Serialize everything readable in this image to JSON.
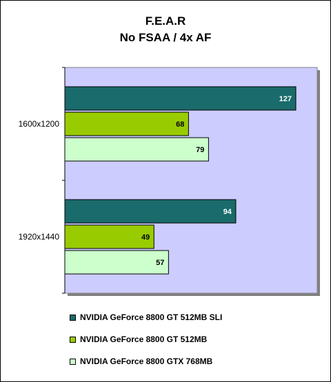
{
  "chart_data": {
    "type": "bar",
    "orientation": "horizontal",
    "title": "F.E.A.R",
    "subtitle": "No FSAA / 4x AF",
    "categories": [
      "1600x1200",
      "1920x1440"
    ],
    "series": [
      {
        "name": "NVIDIA GeForce 8800 GT 512MB SLI",
        "color": "#1a6b6b",
        "label_color": "#ffffff",
        "values": [
          127,
          94
        ]
      },
      {
        "name": "NVIDIA GeForce 8800 GT 512MB",
        "color": "#99cc00",
        "label_color": "#000000",
        "values": [
          68,
          49
        ]
      },
      {
        "name": "NVIDIA GeForce 8800 GTX 768MB",
        "color": "#ccffcc",
        "label_color": "#000000",
        "values": [
          79,
          57
        ]
      }
    ],
    "xlim": [
      0,
      135
    ],
    "plot_background": "#ccccff",
    "grid": false,
    "legend_position": "bottom"
  }
}
